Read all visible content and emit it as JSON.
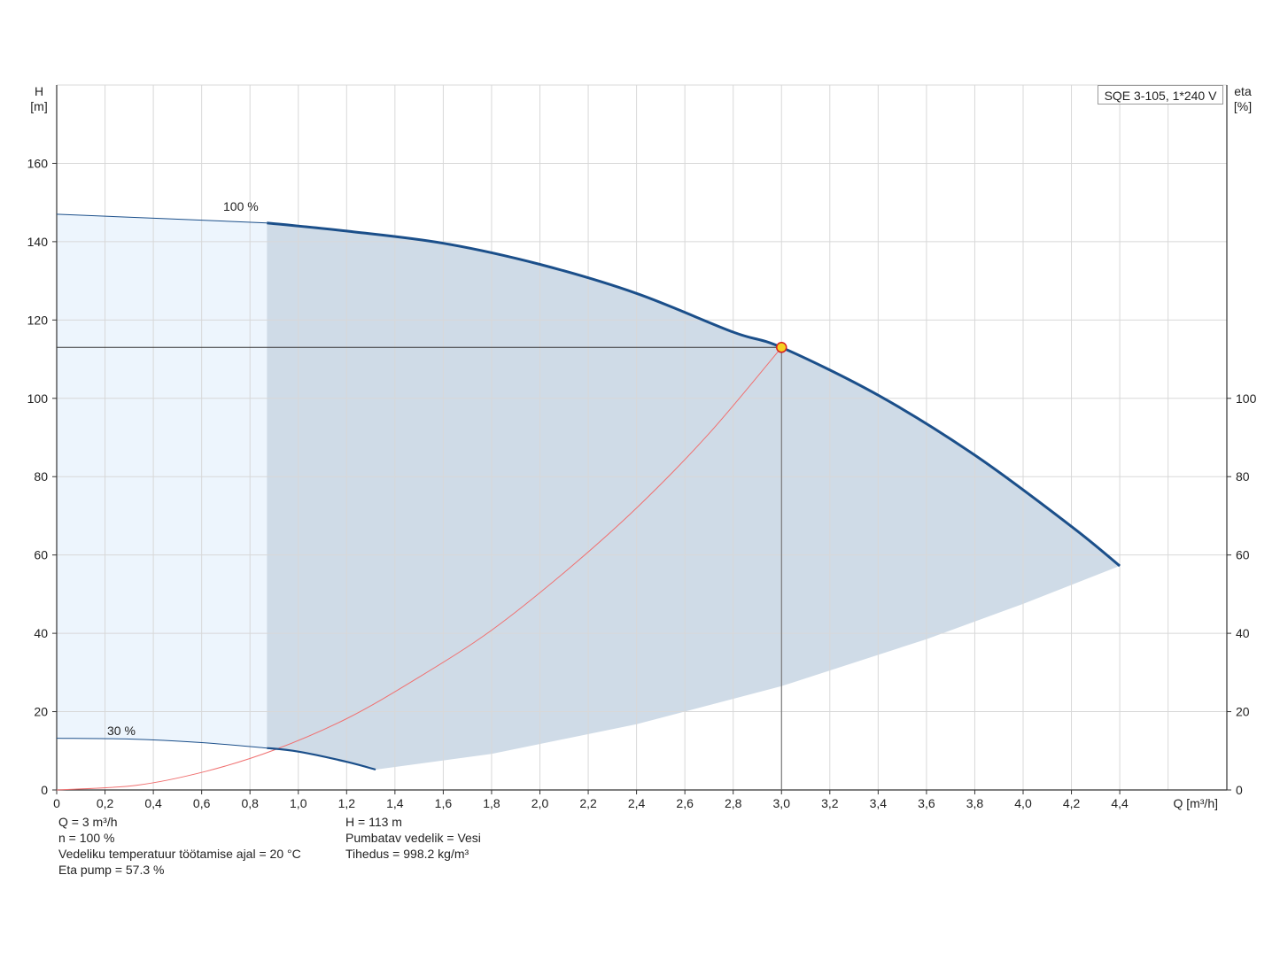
{
  "chart_data": {
    "type": "line",
    "x_axis": {
      "label": "Q [m³/h]",
      "range": [
        0,
        4.6
      ],
      "ticks": [
        "0",
        "0,2",
        "0,4",
        "0,6",
        "0,8",
        "1,0",
        "1,2",
        "1,4",
        "1,6",
        "1,8",
        "2,0",
        "2,2",
        "2,4",
        "2,6",
        "2,8",
        "3,0",
        "3,2",
        "3,4",
        "3,6",
        "3,8",
        "4,0",
        "4,2",
        "4,4"
      ]
    },
    "y_axis_left": {
      "label_line1": "H",
      "label_line2": "[m]",
      "range": [
        0,
        180
      ],
      "ticks": [
        0,
        20,
        40,
        60,
        80,
        100,
        120,
        140,
        160
      ]
    },
    "y_axis_right": {
      "label_line1": "eta",
      "label_line2": "[%]",
      "range": [
        0,
        180
      ],
      "ticks": [
        0,
        20,
        40,
        60,
        80,
        100
      ]
    },
    "grid": true,
    "model_label": "SQE 3-105, 1*240 V",
    "series": [
      {
        "name": "100 %",
        "color": "#1b4f8a",
        "points": [
          [
            0,
            147
          ],
          [
            0.87,
            144.8
          ],
          [
            1.2,
            142.7
          ],
          [
            1.6,
            139.6
          ],
          [
            2.0,
            134.2
          ],
          [
            2.4,
            126.8
          ],
          [
            2.8,
            116.9
          ],
          [
            3.0,
            113.0
          ],
          [
            3.4,
            100.8
          ],
          [
            3.8,
            85.5
          ],
          [
            4.2,
            67.3
          ],
          [
            4.4,
            57.2
          ]
        ]
      },
      {
        "name": "30 %",
        "color": "#1b4f8a",
        "points": [
          [
            0,
            13.2
          ],
          [
            0.3,
            13.0
          ],
          [
            0.6,
            12.1
          ],
          [
            0.87,
            10.7
          ],
          [
            1.0,
            9.8
          ],
          [
            1.2,
            7.2
          ],
          [
            1.32,
            5.2
          ]
        ]
      },
      {
        "name": "eta",
        "color": "#f07070",
        "points": [
          [
            0,
            0
          ],
          [
            0.33,
            1.2
          ],
          [
            0.62,
            4.8
          ],
          [
            0.9,
            10.2
          ],
          [
            1.2,
            18.2
          ],
          [
            1.5,
            28.8
          ],
          [
            1.8,
            40.8
          ],
          [
            2.1,
            55.5
          ],
          [
            2.4,
            72.0
          ],
          [
            2.7,
            91.0
          ],
          [
            3.0,
            113.0
          ]
        ]
      }
    ],
    "operating_region": {
      "color": "#cfdbe7",
      "lower_boundary": [
        [
          1.32,
          5.2
        ],
        [
          1.8,
          9.2
        ],
        [
          2.4,
          16.8
        ],
        [
          3.0,
          26.5
        ],
        [
          3.6,
          38.5
        ],
        [
          4.0,
          47.5
        ],
        [
          4.4,
          57.2
        ]
      ]
    },
    "extended_region": {
      "color": "#edf5fd",
      "x_range": [
        0,
        0.87
      ]
    },
    "duty_point": {
      "q": 3.0,
      "h": 113,
      "color": "#f5d020",
      "border": "#d62020"
    }
  },
  "info_left": [
    "Q = 3 m³/h",
    "n = 100 %",
    "Vedeliku temperatuur töötamise ajal = 20 °C",
    "Eta pump = 57.3 %"
  ],
  "info_right": [
    "H = 113 m",
    "Pumbatav vedelik = Vesi",
    "Tihedus = 998.2 kg/m³"
  ]
}
